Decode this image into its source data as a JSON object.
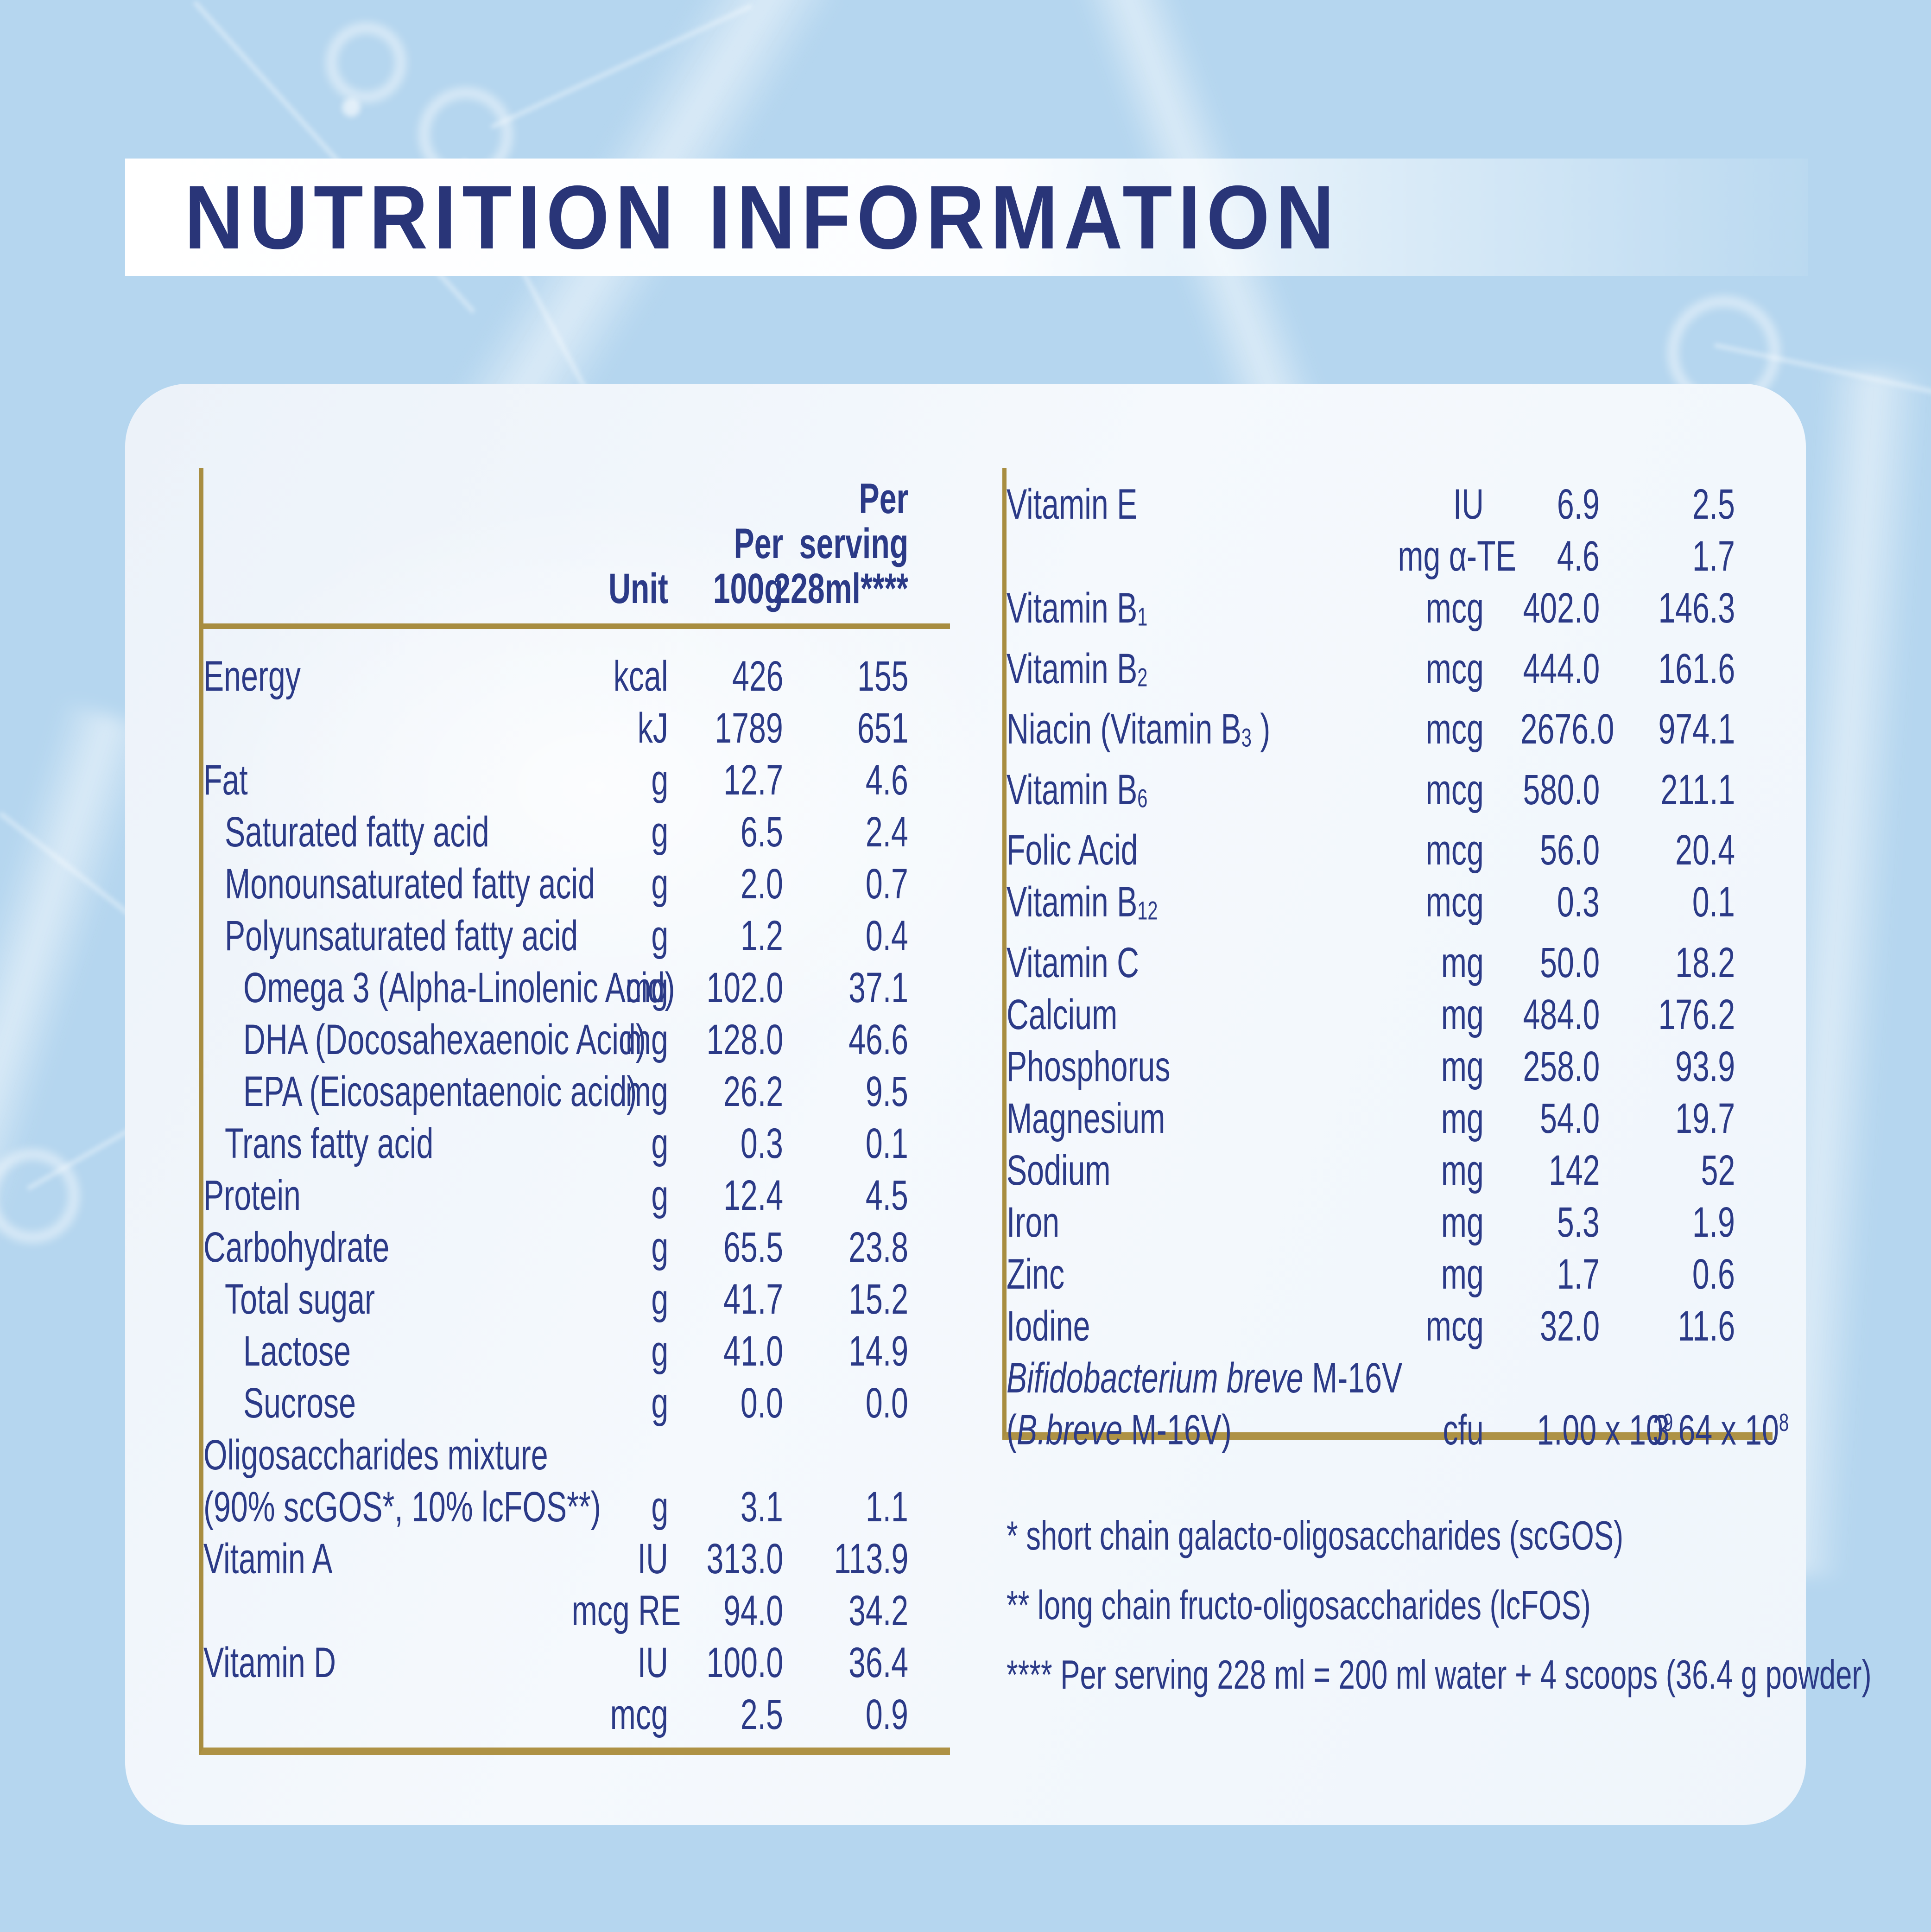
{
  "title": "NUTRITION INFORMATION",
  "colors": {
    "accent_navy": "#2b3a87",
    "title_navy": "#293578",
    "gold_rule": "#a88d40",
    "gold_rule_thick": "#ae9245",
    "background_blue": "#b5d6ef",
    "panel_white": "#f1f6fc"
  },
  "table": {
    "header": {
      "unit": [
        "Unit"
      ],
      "per_100g": [
        "Per",
        "100g"
      ],
      "per_serving": [
        "Per",
        "serving",
        "228ml****"
      ]
    },
    "left_rows": [
      {
        "label": "Energy",
        "indent": 0,
        "unit": "kcal",
        "per100": "426",
        "serving": "155"
      },
      {
        "label": "",
        "indent": 0,
        "unit": "kJ",
        "per100": "1789",
        "serving": "651"
      },
      {
        "label": "Fat",
        "indent": 0,
        "unit": "g",
        "per100": "12.7",
        "serving": "4.6"
      },
      {
        "label": "Saturated fatty acid",
        "indent": 1,
        "unit": "g",
        "per100": "6.5",
        "serving": "2.4"
      },
      {
        "label": "Monounsaturated fatty acid",
        "indent": 1,
        "unit": "g",
        "per100": "2.0",
        "serving": "0.7"
      },
      {
        "label": "Polyunsaturated fatty acid",
        "indent": 1,
        "unit": "g",
        "per100": "1.2",
        "serving": "0.4"
      },
      {
        "label": "Omega 3 (Alpha-Linolenic Acid)",
        "indent": 2,
        "unit": "mg",
        "per100": "102.0",
        "serving": "37.1"
      },
      {
        "label": "DHA (Docosahexaenoic Acid)",
        "indent": 2,
        "unit": "mg",
        "per100": "128.0",
        "serving": "46.6"
      },
      {
        "label": "EPA (Eicosapentaenoic acid)",
        "indent": 2,
        "unit": "mg",
        "per100": "26.2",
        "serving": "9.5"
      },
      {
        "label": "Trans fatty acid",
        "indent": 1,
        "unit": "g",
        "per100": "0.3",
        "serving": "0.1"
      },
      {
        "label": "Protein",
        "indent": 0,
        "unit": "g",
        "per100": "12.4",
        "serving": "4.5"
      },
      {
        "label": "Carbohydrate",
        "indent": 0,
        "unit": "g",
        "per100": "65.5",
        "serving": "23.8"
      },
      {
        "label": "Total sugar",
        "indent": 1,
        "unit": "g",
        "per100": "41.7",
        "serving": "15.2"
      },
      {
        "label": "Lactose",
        "indent": 2,
        "unit": "g",
        "per100": "41.0",
        "serving": "14.9"
      },
      {
        "label": "Sucrose",
        "indent": 2,
        "unit": "g",
        "per100": "0.0",
        "serving": "0.0"
      },
      {
        "label": "Oligosaccharides mixture",
        "label2": "(90% scGOS*, 10% lcFOS**)",
        "indent": 0,
        "unit": "g",
        "per100": "3.1",
        "serving": "1.1"
      },
      {
        "label": "Vitamin A",
        "indent": 0,
        "unit": "IU",
        "per100": "313.0",
        "serving": "113.9"
      },
      {
        "label": "",
        "indent": 0,
        "unit": "mcg RE",
        "per100": "94.0",
        "serving": "34.2"
      },
      {
        "label": "Vitamin D",
        "indent": 0,
        "unit": "IU",
        "per100": "100.0",
        "serving": "36.4"
      },
      {
        "label": "",
        "indent": 0,
        "unit": "mcg",
        "per100": "2.5",
        "serving": "0.9"
      }
    ],
    "right_rows": [
      {
        "label": "Vitamin E",
        "indent": 0,
        "unit": "IU",
        "per100": "6.9",
        "serving": "2.5"
      },
      {
        "label": "",
        "indent": 0,
        "unit": "mg α-TE",
        "per100": "4.6",
        "serving": "1.7"
      },
      {
        "label": [
          {
            "t": "Vitamin B"
          },
          {
            "t": "1",
            "sub": true
          }
        ],
        "indent": 0,
        "unit": "mcg",
        "per100": "402.0",
        "serving": "146.3"
      },
      {
        "label": [
          {
            "t": "Vitamin B"
          },
          {
            "t": "2",
            "sub": true
          }
        ],
        "indent": 0,
        "unit": "mcg",
        "per100": "444.0",
        "serving": "161.6"
      },
      {
        "label": [
          {
            "t": "Niacin (Vitamin B"
          },
          {
            "t": "3",
            "sub": true
          },
          {
            "t": " )"
          }
        ],
        "indent": 0,
        "unit": "mcg",
        "per100": "2676.0",
        "serving": "974.1"
      },
      {
        "label": [
          {
            "t": "Vitamin B"
          },
          {
            "t": "6",
            "sub": true
          }
        ],
        "indent": 0,
        "unit": "mcg",
        "per100": "580.0",
        "serving": "211.1"
      },
      {
        "label": "Folic Acid",
        "indent": 0,
        "unit": "mcg",
        "per100": "56.0",
        "serving": "20.4"
      },
      {
        "label": [
          {
            "t": "Vitamin B"
          },
          {
            "t": "12",
            "sub": true
          }
        ],
        "indent": 0,
        "unit": "mcg",
        "per100": "0.3",
        "serving": "0.1"
      },
      {
        "label": "Vitamin C",
        "indent": 0,
        "unit": "mg",
        "per100": "50.0",
        "serving": "18.2"
      },
      {
        "label": "Calcium",
        "indent": 0,
        "unit": "mg",
        "per100": "484.0",
        "serving": "176.2"
      },
      {
        "label": "Phosphorus",
        "indent": 0,
        "unit": "mg",
        "per100": "258.0",
        "serving": "93.9"
      },
      {
        "label": "Magnesium",
        "indent": 0,
        "unit": "mg",
        "per100": "54.0",
        "serving": "19.7"
      },
      {
        "label": "Sodium",
        "indent": 0,
        "unit": "mg",
        "per100": "142",
        "serving": "52"
      },
      {
        "label": "Iron",
        "indent": 0,
        "unit": "mg",
        "per100": "5.3",
        "serving": "1.9"
      },
      {
        "label": "Zinc",
        "indent": 0,
        "unit": "mg",
        "per100": "1.7",
        "serving": "0.6"
      },
      {
        "label": "Iodine",
        "indent": 0,
        "unit": "mcg",
        "per100": "32.0",
        "serving": "11.6"
      },
      {
        "label": [
          {
            "t": "Bifidobacterium breve",
            "i": true
          },
          {
            "t": " M-16V"
          }
        ],
        "label2": [
          {
            "t": "("
          },
          {
            "t": "B.breve",
            "i": true
          },
          {
            "t": " M-16V)"
          }
        ],
        "indent": 0,
        "unit": "cfu",
        "per100": [
          {
            "t": "1.00 x 10"
          },
          {
            "t": "9",
            "sup": true
          }
        ],
        "serving": [
          {
            "t": "3.64 x 10"
          },
          {
            "t": "8",
            "sup": true
          }
        ]
      }
    ]
  },
  "footnotes": [
    {
      "marker": "*",
      "text": "short chain galacto-oligosaccharides (scGOS)"
    },
    {
      "marker": "**",
      "text": "long chain fructo-oligosaccharides (lcFOS)"
    },
    {
      "marker": "****",
      "text": "Per serving 228 ml = 200 ml water + 4 scoops (36.4 g powder)"
    }
  ]
}
